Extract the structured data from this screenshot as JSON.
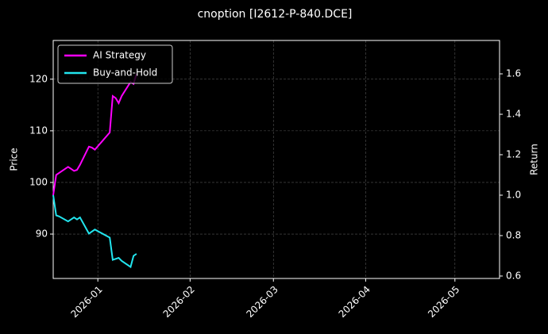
{
  "chart_data": {
    "type": "line",
    "title": "cnoption [I2612-P-840.DCE]",
    "y_label": "Price",
    "y2_label": "Return",
    "x": [
      "2025-12-17",
      "2025-12-18",
      "2025-12-19",
      "2025-12-22",
      "2025-12-23",
      "2025-12-24",
      "2025-12-25",
      "2025-12-26",
      "2025-12-29",
      "2025-12-30",
      "2025-12-31",
      "2026-01-05",
      "2026-01-06",
      "2026-01-07",
      "2026-01-08",
      "2026-01-09",
      "2026-01-12",
      "2026-01-13",
      "2026-01-14"
    ],
    "series": [
      {
        "name": "AI Strategy",
        "color": "#ff00ff",
        "axis": "y2",
        "values": [
          1.0,
          1.1,
          1.11,
          1.14,
          1.13,
          1.12,
          1.125,
          1.15,
          1.24,
          1.235,
          1.225,
          1.31,
          1.49,
          1.48,
          1.455,
          1.49,
          1.56,
          1.55,
          1.6
        ]
      },
      {
        "name": "Buy-and-Hold",
        "color": "#22e5ee",
        "axis": "y2",
        "values": [
          1.0,
          0.9,
          0.895,
          0.87,
          0.88,
          0.89,
          0.88,
          0.89,
          0.81,
          0.82,
          0.83,
          0.79,
          0.68,
          0.685,
          0.69,
          0.675,
          0.645,
          0.7,
          0.71
        ]
      }
    ],
    "xlim": [
      "2025-12-17",
      "2026-05-16"
    ],
    "xticks": [
      "2026-01",
      "2026-02",
      "2026-03",
      "2026-04",
      "2026-05"
    ],
    "ylim": [
      81.4,
      127.5
    ],
    "yticks": [
      90,
      100,
      110,
      120
    ],
    "y2lim": [
      0.588,
      1.765
    ],
    "y2ticks": [
      0.6,
      0.8,
      {
        "value": 1,
        "label": "1.0"
      },
      1.2,
      1.4,
      1.6
    ],
    "grid": true,
    "legend": "upper left"
  }
}
